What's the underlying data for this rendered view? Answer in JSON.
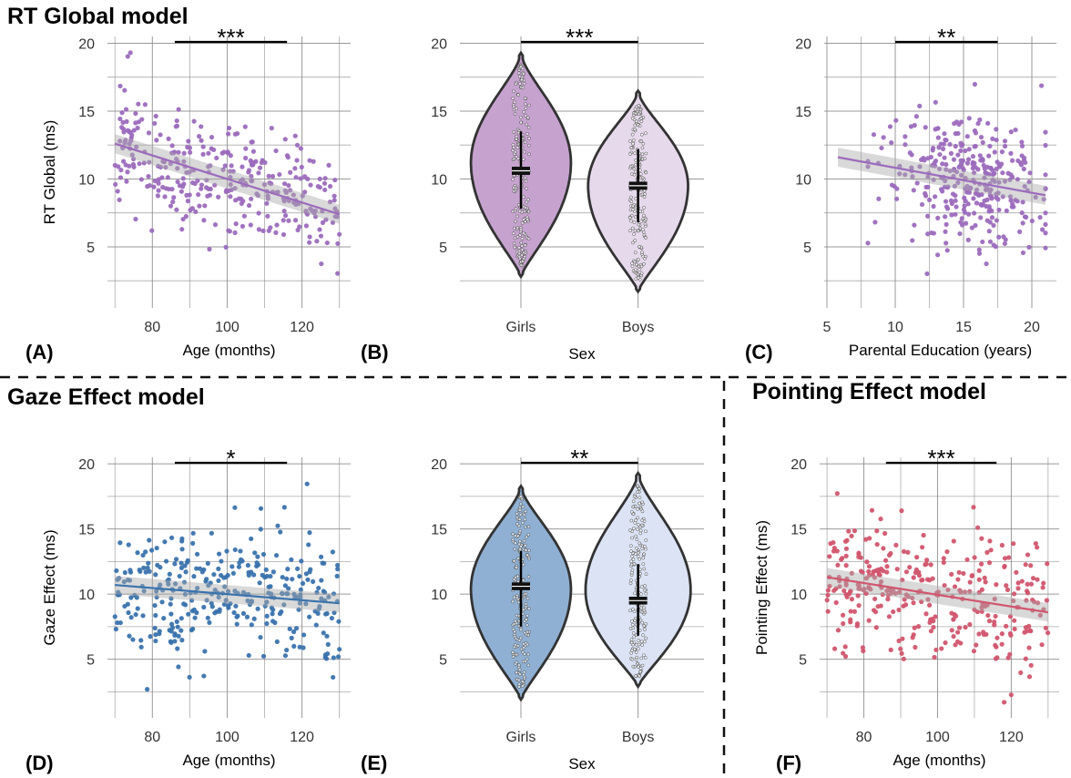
{
  "sections": {
    "rt": "RT Global model",
    "gaze": "Gaze Effect model",
    "pointing": "Pointing Effect model"
  },
  "colors": {
    "rt_scatter": "#9c6bbd",
    "rt_girls": "#c6a3cf",
    "rt_boys": "#e6d9ec",
    "gaze_scatter": "#3a73ad",
    "gaze_girls": "#8fb0d3",
    "gaze_boys": "#dbe3f5",
    "pointing_scatter": "#d1566e",
    "grid": "#888888",
    "outline": "#333333"
  },
  "chart_data": [
    {
      "id": "A",
      "panel_label": "(A)",
      "type": "scatter",
      "xlabel": "Age (months)",
      "ylabel": "RT Global (ms)",
      "xticks": [
        80,
        100,
        120
      ],
      "yticks": [
        5,
        10,
        15,
        20
      ],
      "xlim": [
        68,
        133
      ],
      "ylim": [
        0.5,
        20.5
      ],
      "significance": "***",
      "sig_bar": [
        86,
        116
      ],
      "trend": {
        "x": [
          70,
          130
        ],
        "y": [
          12.6,
          7.4
        ]
      },
      "n_points": 330,
      "x_range": [
        70,
        130
      ],
      "point_sd": 2.2
    },
    {
      "id": "B",
      "panel_label": "(B)",
      "type": "violin",
      "xlabel": "Sex",
      "ylabel": "",
      "categories": [
        "Girls",
        "Boys"
      ],
      "yticks": [
        5,
        10,
        15,
        20
      ],
      "ylim": [
        0.5,
        20.5
      ],
      "significance": "***",
      "groups": [
        {
          "name": "Girls",
          "min": 2.8,
          "max": 19.3,
          "mean": 10.6,
          "ci": [
            10.3,
            10.9
          ],
          "sd_bar": [
            7.8,
            13.5
          ],
          "mode": 11.2,
          "max_half_width": 0.78
        },
        {
          "name": "Boys",
          "min": 1.7,
          "max": 16.5,
          "mean": 9.5,
          "ci": [
            9.2,
            9.8
          ],
          "sd_bar": [
            6.8,
            12.2
          ],
          "mode": 9.5,
          "max_half_width": 0.78
        }
      ]
    },
    {
      "id": "C",
      "panel_label": "(C)",
      "type": "scatter",
      "xlabel": "Parental Education (years)",
      "ylabel": "",
      "xticks": [
        5,
        10,
        15,
        20
      ],
      "yticks": [
        5,
        10,
        15,
        20
      ],
      "xlim": [
        4.8,
        21.8
      ],
      "ylim": [
        0.5,
        20.5
      ],
      "significance": "**",
      "sig_bar": [
        10,
        17.5
      ],
      "trend": {
        "x": [
          5.8,
          21
        ],
        "y": [
          11.6,
          8.8
        ]
      },
      "n_points": 330,
      "x_range": [
        8,
        21
      ],
      "point_sd": 2.4
    },
    {
      "id": "D",
      "panel_label": "(D)",
      "type": "scatter",
      "xlabel": "Age (months)",
      "ylabel": "Gaze Effect (ms)",
      "xticks": [
        80,
        100,
        120
      ],
      "yticks": [
        5,
        10,
        15,
        20
      ],
      "xlim": [
        68,
        133
      ],
      "ylim": [
        0.5,
        20.5
      ],
      "significance": "*",
      "sig_bar": [
        86,
        116
      ],
      "trend": {
        "x": [
          70,
          130
        ],
        "y": [
          10.7,
          9.3
        ]
      },
      "n_points": 330,
      "x_range": [
        70,
        130
      ],
      "point_sd": 2.6
    },
    {
      "id": "E",
      "panel_label": "(E)",
      "type": "violin",
      "xlabel": "Sex",
      "ylabel": "",
      "categories": [
        "Girls",
        "Boys"
      ],
      "yticks": [
        5,
        10,
        15,
        20
      ],
      "ylim": [
        0.5,
        20.5
      ],
      "significance": "**",
      "groups": [
        {
          "name": "Girls",
          "min": 1.9,
          "max": 18.3,
          "mean": 10.6,
          "ci": [
            10.3,
            10.9
          ],
          "sd_bar": [
            7.5,
            13.3
          ],
          "mode": 10.4,
          "max_half_width": 0.78
        },
        {
          "name": "Boys",
          "min": 2.9,
          "max": 19.3,
          "mean": 9.5,
          "ci": [
            9.2,
            9.8
          ],
          "sd_bar": [
            6.8,
            12.3
          ],
          "mode": 10.3,
          "max_half_width": 0.82
        }
      ]
    },
    {
      "id": "F",
      "panel_label": "(F)",
      "type": "scatter",
      "xlabel": "Age (months)",
      "ylabel": "Pointing Effect (ms)",
      "xticks": [
        80,
        100,
        120
      ],
      "yticks": [
        5,
        10,
        15,
        20
      ],
      "xlim": [
        68,
        133
      ],
      "ylim": [
        0.5,
        20.5
      ],
      "significance": "***",
      "sig_bar": [
        86,
        116
      ],
      "trend": {
        "x": [
          70,
          130
        ],
        "y": [
          11.3,
          8.6
        ]
      },
      "n_points": 330,
      "x_range": [
        70,
        130
      ],
      "point_sd": 2.5
    }
  ]
}
